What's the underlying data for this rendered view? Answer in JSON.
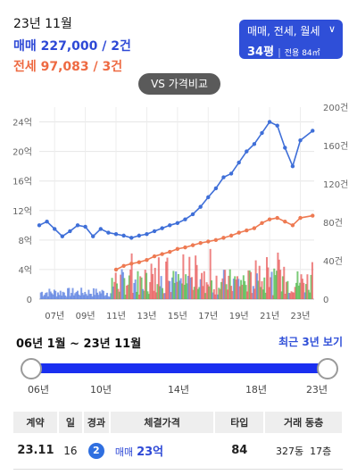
{
  "header": {
    "date": "23년 11월",
    "sale_label": "매매 227,000 / 2건",
    "jeonse_label": "전세 97,083 / 3건"
  },
  "filter": {
    "deal_types": "매매, 전세, 월세",
    "area_pyeong": "34평",
    "area_exclusive": "전용 84㎡",
    "chevron_icon": "chevron-down-icon"
  },
  "compare_button": "VS  가격비교",
  "colors": {
    "sale": "#3f6fd8",
    "jeonse": "#ee7a52",
    "accent": "#2f4fd8",
    "vol_red": "#e85a5a",
    "vol_green": "#4fb84a",
    "vol_blue": "#5a7fe0"
  },
  "chart_data": {
    "type": "line",
    "x_ticks": [
      "07년",
      "09년",
      "11년",
      "13년",
      "15년",
      "17년",
      "19년",
      "21년",
      "23년"
    ],
    "y_left_ticks": [
      "0",
      "4억",
      "8억",
      "12억",
      "16억",
      "20억",
      "24억"
    ],
    "y_right_ticks": [
      "0",
      "40건",
      "80건",
      "120건",
      "160건",
      "200건"
    ],
    "y_left_range": [
      0,
      26
    ],
    "y_right_range": [
      0,
      200
    ],
    "grid": true,
    "x": [
      2006.0,
      2006.5,
      2007.0,
      2007.5,
      2008.0,
      2008.5,
      2009.0,
      2009.5,
      2010.0,
      2010.5,
      2011.0,
      2011.5,
      2012.0,
      2012.5,
      2013.0,
      2013.5,
      2014.0,
      2014.5,
      2015.0,
      2015.5,
      2016.0,
      2016.5,
      2017.0,
      2017.5,
      2018.0,
      2018.5,
      2019.0,
      2019.5,
      2020.0,
      2020.5,
      2021.0,
      2021.5,
      2022.0,
      2022.5,
      2023.0,
      2023.8
    ],
    "series": [
      {
        "name": "매매",
        "values": [
          10,
          10.5,
          9.5,
          8.5,
          9.2,
          10,
          9.8,
          8.5,
          9.5,
          9.0,
          8.8,
          8.6,
          8.3,
          8.6,
          8.8,
          9.2,
          9.6,
          10.0,
          10.3,
          10.8,
          11.5,
          12.5,
          13.8,
          15.0,
          16.5,
          17.0,
          18.5,
          20.0,
          21.0,
          22.5,
          24.0,
          23.5,
          20.5,
          18.0,
          21.5,
          22.8
        ]
      },
      {
        "name": "전세",
        "values": [
          null,
          null,
          null,
          null,
          null,
          null,
          null,
          null,
          null,
          null,
          4.0,
          4.5,
          4.8,
          5.0,
          5.3,
          5.8,
          6.1,
          6.4,
          6.8,
          7.0,
          7.3,
          7.6,
          7.8,
          8.0,
          8.3,
          8.6,
          9.0,
          9.3,
          9.6,
          10.3,
          10.8,
          11.0,
          10.5,
          10.0,
          11.0,
          11.3
        ]
      }
    ]
  },
  "range": {
    "title": "06년 1월 ~ 23년 11월",
    "link": "최근 3년 보기",
    "ticks": [
      "06년",
      "10년",
      "14년",
      "18년",
      "23년"
    ]
  },
  "table": {
    "headers": [
      "계약",
      "일",
      "경과",
      "체결가격",
      "타입",
      "거래 동층"
    ],
    "rows": [
      {
        "contract": "23.11",
        "day": "16",
        "elapsed": "2",
        "price_kind": "매매",
        "price": "23억",
        "type": "84",
        "dong": "327동",
        "floor": "17층"
      }
    ]
  }
}
